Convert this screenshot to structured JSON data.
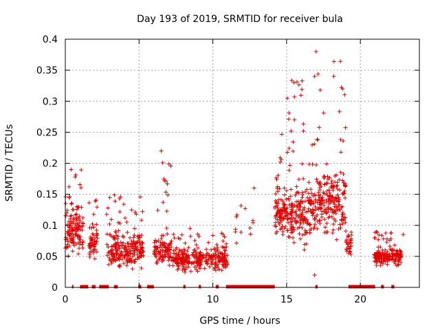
{
  "chart_data": {
    "type": "scatter",
    "title": "Day 193 of 2019, SRMTID for receiver bula",
    "xlabel": "GPS time / hours",
    "ylabel": "SRMTID / TECUs",
    "xlim": [
      0,
      24
    ],
    "ylim": [
      0,
      0.4
    ],
    "x_ticks": [
      {
        "value": 0,
        "label": "0"
      },
      {
        "value": 5,
        "label": "5"
      },
      {
        "value": 10,
        "label": "10"
      },
      {
        "value": 15,
        "label": "15"
      },
      {
        "value": 20,
        "label": "20"
      }
    ],
    "y_ticks": [
      {
        "value": 0,
        "label": "0"
      },
      {
        "value": 0.05,
        "label": "0.05"
      },
      {
        "value": 0.1,
        "label": "0.1"
      },
      {
        "value": 0.15,
        "label": "0.15"
      },
      {
        "value": 0.2,
        "label": "0.2"
      },
      {
        "value": 0.25,
        "label": "0.25"
      },
      {
        "value": 0.3,
        "label": "0.3"
      },
      {
        "value": 0.35,
        "label": "0.35"
      },
      {
        "value": 0.4,
        "label": "0.4"
      }
    ],
    "grid": true,
    "marker_color": "#e00000",
    "clusters": [
      {
        "x": [
          0.0,
          1.2
        ],
        "base": 0.09,
        "spread": 0.06,
        "max": 0.19,
        "count": 130
      },
      {
        "x": [
          1.6,
          2.2
        ],
        "base": 0.07,
        "spread": 0.04,
        "max": 0.15,
        "count": 55
      },
      {
        "x": [
          2.8,
          5.3
        ],
        "base": 0.06,
        "spread": 0.04,
        "max": 0.15,
        "count": 230
      },
      {
        "x": [
          6.0,
          7.2
        ],
        "base": 0.06,
        "spread": 0.03,
        "max": 0.22,
        "count": 110
      },
      {
        "x": [
          7.2,
          9.0
        ],
        "base": 0.045,
        "spread": 0.025,
        "max": 0.1,
        "count": 140
      },
      {
        "x": [
          9.0,
          11.0
        ],
        "base": 0.045,
        "spread": 0.025,
        "max": 0.09,
        "count": 160
      },
      {
        "x": [
          11.5,
          12.8
        ],
        "base": 0.1,
        "spread": 0.05,
        "max": 0.16,
        "count": 12
      },
      {
        "x": [
          14.2,
          15.0
        ],
        "base": 0.12,
        "spread": 0.06,
        "max": 0.26,
        "count": 90
      },
      {
        "x": [
          15.0,
          17.0
        ],
        "base": 0.12,
        "spread": 0.07,
        "max": 0.34,
        "count": 200
      },
      {
        "x": [
          17.0,
          19.0
        ],
        "base": 0.14,
        "spread": 0.07,
        "max": 0.38,
        "count": 200
      },
      {
        "x": [
          19.0,
          19.4
        ],
        "base": 0.07,
        "spread": 0.03,
        "max": 0.1,
        "count": 30
      },
      {
        "x": [
          20.9,
          22.8
        ],
        "base": 0.05,
        "spread": 0.02,
        "max": 0.09,
        "count": 170
      }
    ],
    "outliers": [
      {
        "x": 17.0,
        "y": 0.38
      },
      {
        "x": 15.5,
        "y": 0.33
      },
      {
        "x": 18.2,
        "y": 0.34
      },
      {
        "x": 18.8,
        "y": 0.32
      },
      {
        "x": 16.9,
        "y": 0.34
      },
      {
        "x": 6.5,
        "y": 0.22
      },
      {
        "x": 0.4,
        "y": 0.19
      },
      {
        "x": 16.9,
        "y": 0.02
      },
      {
        "x": 12.8,
        "y": 0.16
      },
      {
        "x": 22.9,
        "y": 0.085
      }
    ],
    "zero_segments": [
      [
        0.45,
        0.55
      ],
      [
        1.0,
        1.55
      ],
      [
        1.8,
        2.05
      ],
      [
        2.3,
        2.95
      ],
      [
        3.3,
        3.55
      ],
      [
        4.95,
        5.15
      ],
      [
        5.55,
        6.0
      ],
      [
        8.0,
        8.15
      ],
      [
        9.05,
        9.2
      ],
      [
        10.2,
        10.4
      ],
      [
        10.9,
        14.2
      ],
      [
        16.95,
        17.1
      ],
      [
        19.2,
        21.0
      ],
      [
        21.4,
        21.6
      ],
      [
        22.1,
        22.3
      ]
    ]
  }
}
